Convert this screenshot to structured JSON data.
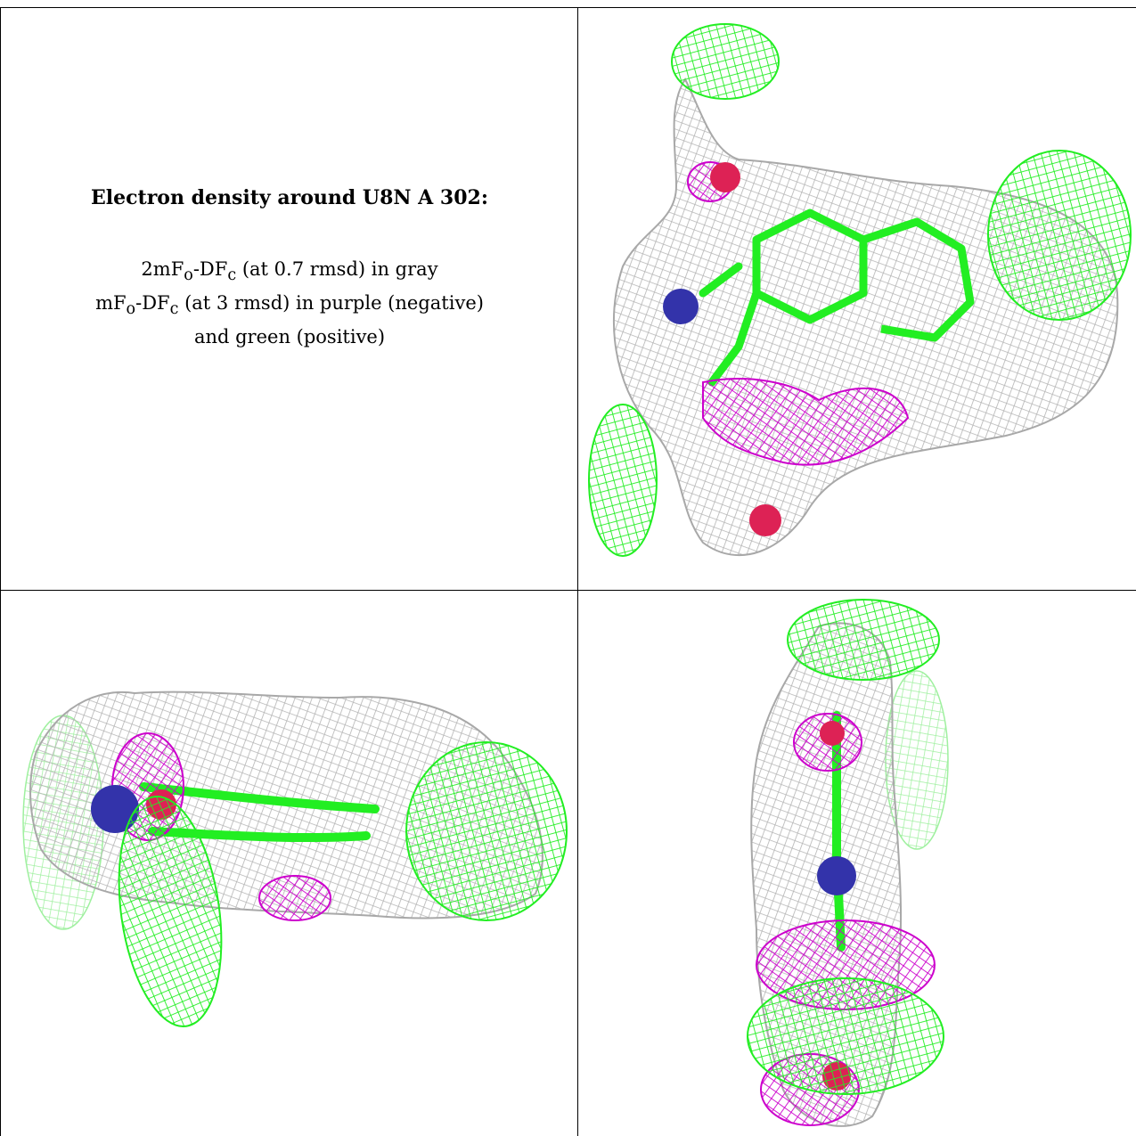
{
  "caption": {
    "title": "Electron density around U8N A 302:",
    "line1_prefix": "2mF",
    "line1_sub_o": "o",
    "line1_mid": "-DF",
    "line1_sub_c": "c",
    "line1_suffix": " (at 0.7 rmsd) in gray",
    "line2_prefix": "mF",
    "line2_sub_o": "o",
    "line2_mid": "-DF",
    "line2_sub_c": "c",
    "line2_suffix": " (at 3 rmsd) in purple (negative)",
    "line3": "and green (positive)"
  },
  "colors": {
    "density_2fofc": "#b4b4b4",
    "difference_negative": "#cc00cc",
    "difference_positive": "#22ee22",
    "atom_nitrogen": "#3333aa",
    "atom_oxygen": "#dd2255"
  },
  "panels": [
    {
      "view": "top-right"
    },
    {
      "view": "bottom-left"
    },
    {
      "view": "bottom-right"
    }
  ]
}
